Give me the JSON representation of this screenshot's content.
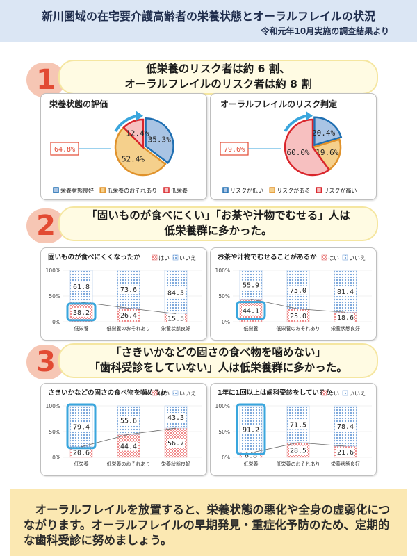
{
  "header": {
    "title": "新川圏域の在宅要介護高齢者の栄養状態とオーラルフレイルの状況",
    "subtitle": "令和元年10月実施の調査結果より"
  },
  "sections": [
    {
      "number": "1",
      "lines": [
        "低栄養のリスク者は約 6 割、",
        "オーラルフレイルのリスク者は約 8 割"
      ]
    },
    {
      "number": "2",
      "lines": [
        "「固いものが食べにくい」「お茶や汁物でむせる」人は",
        "低栄養群に多かった。"
      ]
    },
    {
      "number": "3",
      "lines": [
        "「さきいかなどの固さの食べ物を噛めない」",
        "「歯科受診をしていない」人は低栄養群に多かった。"
      ]
    }
  ],
  "footer": {
    "text": "　オーラルフレイルを放置すると、栄養状態の悪化や全身の虚弱化につながります。オーラルフレイルの早期発見・重症化予防のため、定期的な歯科受診に努めましょう。"
  },
  "chart_data": [
    {
      "type": "pie",
      "title": "栄養状態の評価",
      "callout": "64.8%",
      "slices": [
        {
          "label": "栄養状態良好",
          "value": 35.3,
          "text": "35.3%",
          "color": "#a9c4e4",
          "edge": "#1f6fb2"
        },
        {
          "label": "低栄養のおそれあり",
          "value": 52.4,
          "text": "52.4%",
          "color": "#f5d08c",
          "edge": "#e0922b"
        },
        {
          "label": "低栄養",
          "value": 12.4,
          "text": "12.4%",
          "color": "#f7c0c0",
          "edge": "#d9262c"
        }
      ],
      "legend": [
        "栄養状態良好",
        "低栄養のおそれあり",
        "低栄養"
      ]
    },
    {
      "type": "pie",
      "title": "オーラルフレイルのリスク判定",
      "callout": "79.6%",
      "slices": [
        {
          "label": "リスクが低い",
          "value": 20.4,
          "text": "20.4%",
          "color": "#a9c4e4",
          "edge": "#1f6fb2"
        },
        {
          "label": "リスクがある",
          "value": 19.6,
          "text": "19.6%",
          "color": "#f5d08c",
          "edge": "#e0922b"
        },
        {
          "label": "リスクが高い",
          "value": 60.0,
          "text": "60.0%",
          "color": "#f7c0c0",
          "edge": "#d9262c"
        }
      ],
      "legend": [
        "リスクが低い",
        "リスクがある",
        "リスクが高い"
      ]
    },
    {
      "type": "bar",
      "stacked": true,
      "title": "固いものが食べにくくなったか",
      "categories": [
        "低栄養",
        "低栄養のおそれあり",
        "栄養状態良好"
      ],
      "series": [
        {
          "name": "はい",
          "values": [
            38.2,
            26.4,
            15.5
          ]
        },
        {
          "name": "いいえ",
          "values": [
            61.8,
            73.6,
            84.5
          ]
        }
      ],
      "yticks": [
        "0%",
        "50%",
        "100%"
      ],
      "ylim": [
        0,
        100
      ]
    },
    {
      "type": "bar",
      "stacked": true,
      "title": "お茶や汁物でむせることがあるか",
      "categories": [
        "低栄養",
        "低栄養のおそれあり",
        "栄養状態良好"
      ],
      "series": [
        {
          "name": "はい",
          "values": [
            44.1,
            25.0,
            18.6
          ]
        },
        {
          "name": "いいえ",
          "values": [
            55.9,
            75.0,
            81.4
          ]
        }
      ],
      "yticks": [
        "0%",
        "50%",
        "100%"
      ],
      "ylim": [
        0,
        100
      ]
    },
    {
      "type": "bar",
      "stacked": true,
      "title": "さきいかなどの固さの食べ物を噛めるか",
      "categories": [
        "低栄養",
        "低栄養のおそれあり",
        "栄養状態良好"
      ],
      "series": [
        {
          "name": "はい",
          "values": [
            20.6,
            44.4,
            56.7
          ]
        },
        {
          "name": "いいえ",
          "values": [
            79.4,
            55.6,
            43.3
          ]
        }
      ],
      "yticks": [
        "0%",
        "50%",
        "100%"
      ],
      "ylim": [
        0,
        100
      ]
    },
    {
      "type": "bar",
      "stacked": true,
      "title": "1年に1回以上は歯科受診をしているか",
      "categories": [
        "低栄養",
        "低栄養のおそれあり",
        "栄養状態良好"
      ],
      "series": [
        {
          "name": "はい",
          "values": [
            8.8,
            28.5,
            21.6
          ]
        },
        {
          "name": "いいえ",
          "values": [
            91.2,
            71.5,
            78.4
          ]
        }
      ],
      "yticks": [
        "0%",
        "50%",
        "100%"
      ],
      "ylim": [
        0,
        100
      ]
    }
  ]
}
